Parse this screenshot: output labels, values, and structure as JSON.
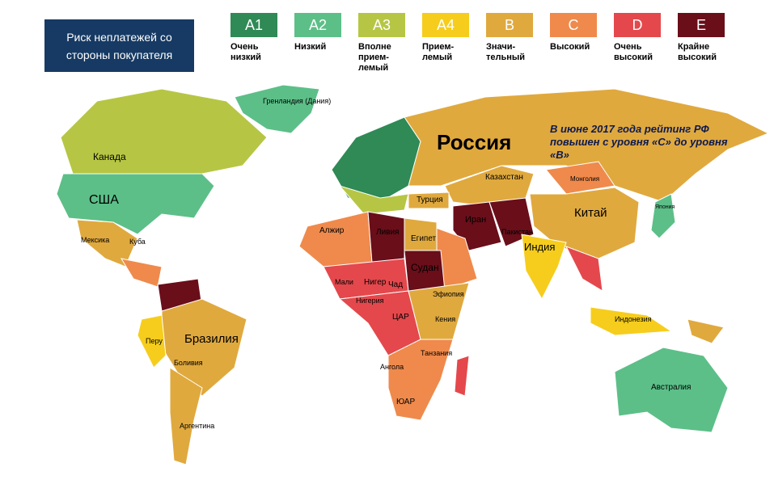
{
  "legend": {
    "title": "Риск неплатежей со стороны покупателя",
    "items": [
      {
        "code": "A1",
        "label": "Очень низкий",
        "color": "#2f8a55"
      },
      {
        "code": "A2",
        "label": "Низкий",
        "color": "#5cbf88"
      },
      {
        "code": "A3",
        "label": "Вполне прием-лемый",
        "color": "#b6c644"
      },
      {
        "code": "A4",
        "label": "Прием-лемый",
        "color": "#f6cd1c"
      },
      {
        "code": "B",
        "label": "Значи-тельный",
        "color": "#e0a93e"
      },
      {
        "code": "C",
        "label": "Высокий",
        "color": "#ef8a4c"
      },
      {
        "code": "D",
        "label": "Очень высокий",
        "color": "#e4484c"
      },
      {
        "code": "E",
        "label": "Крайне высокий",
        "color": "#6a0e1a"
      }
    ]
  },
  "annotation": "В июне 2017 года рейтинг  РФ повышен с уровня «С» до уровня «В»",
  "countries": {
    "russia": "Россия",
    "canada": "Канада",
    "usa": "США",
    "greenland": "Гренландия (Дания)",
    "mexico": "Мексика",
    "cuba": "Куба",
    "brazil": "Бразилия",
    "peru": "Перу",
    "bolivia": "Боливия",
    "argentina": "Аргентина",
    "kazakhstan": "Казахстан",
    "mongolia": "Монголия",
    "china": "Китай",
    "india": "Индия",
    "iran": "Иран",
    "turkey": "Турция",
    "pakistan": "Пакистан",
    "japan": "Япония",
    "indonesia": "Индонезия",
    "australia": "Австралия",
    "algeria": "Алжир",
    "libya": "Ливия",
    "egypt": "Египет",
    "mali": "Мали",
    "niger": "Нигер",
    "chad": "Чад",
    "sudan": "Судан",
    "nigeria": "Нигерия",
    "ethiopia": "Эфиопия",
    "car": "ЦАР",
    "kenya": "Кения",
    "tanzania": "Танзания",
    "angola": "Ангола",
    "sa": "ЮАР"
  }
}
